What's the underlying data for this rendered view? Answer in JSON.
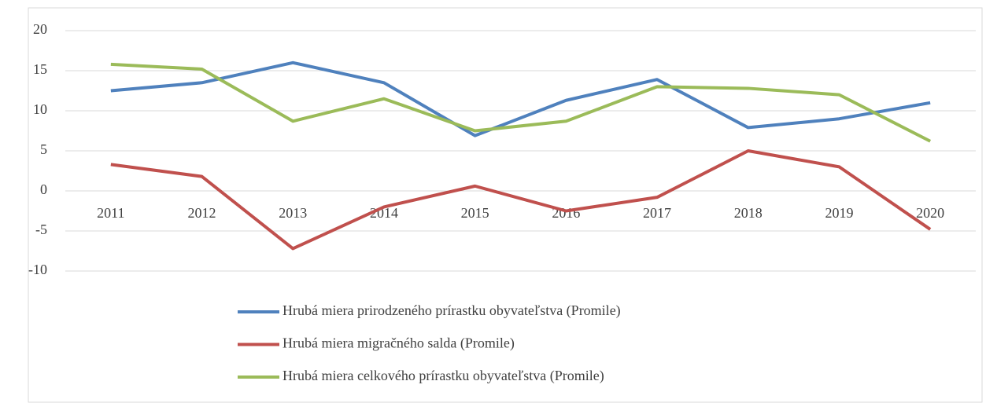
{
  "chart_data": {
    "type": "line",
    "categories": [
      "2011",
      "2012",
      "2013",
      "2014",
      "2015",
      "2016",
      "2017",
      "2018",
      "2019",
      "2020"
    ],
    "series": [
      {
        "name": "Hrubá miera prirodzeného prírastku obyvateľstva (Promile)",
        "color": "#4f81bd",
        "values": [
          12.5,
          13.5,
          16,
          13.5,
          6.9,
          11.3,
          13.9,
          7.9,
          9.0,
          11.0
        ]
      },
      {
        "name": "Hrubá miera migračného salda (Promile)",
        "color": "#c0504d",
        "values": [
          3.3,
          1.8,
          -7.2,
          -2.0,
          0.6,
          -2.5,
          -0.8,
          5.0,
          3.0,
          -4.8
        ]
      },
      {
        "name": "Hrubá miera celkového prírastku obyvateľstva (Promile)",
        "color": "#9bbb59",
        "values": [
          15.8,
          15.2,
          8.7,
          11.5,
          7.5,
          8.7,
          13.0,
          12.8,
          12.0,
          6.2
        ]
      }
    ],
    "ylim": [
      -10,
      20
    ],
    "yticks": [
      -10,
      -5,
      0,
      5,
      10,
      15,
      20
    ],
    "grid": true,
    "legend": "bottom"
  }
}
